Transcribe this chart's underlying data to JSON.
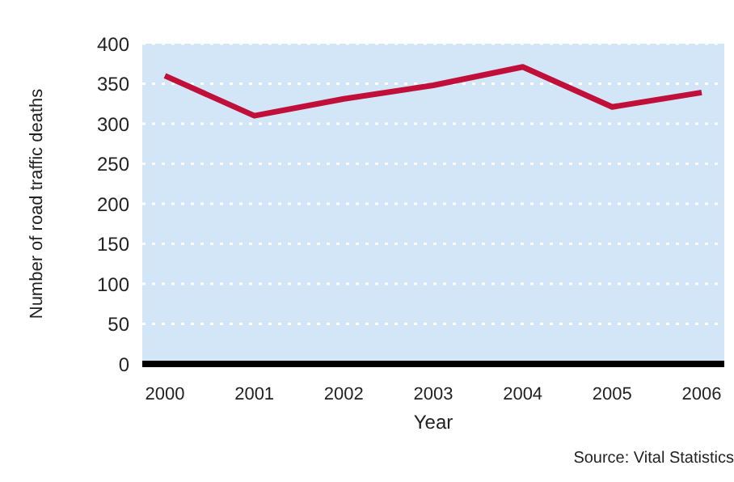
{
  "chart_data": {
    "type": "line",
    "xlabel": "Year",
    "ylabel": "Number of road traffic deaths",
    "annotations": [
      "Source: Vital Statistics"
    ],
    "categories": [
      "2000",
      "2001",
      "2002",
      "2003",
      "2004",
      "2005",
      "2006"
    ],
    "series": [
      {
        "color": "#c0103a",
        "values": [
          360,
          310,
          331,
          348,
          371,
          321,
          339
        ]
      }
    ],
    "ylim": [
      0,
      400
    ],
    "yticks": [
      0,
      50,
      100,
      150,
      200,
      250,
      300,
      350,
      400
    ],
    "grid": "y",
    "legend": false,
    "marker": "none",
    "line_style": "solid"
  }
}
